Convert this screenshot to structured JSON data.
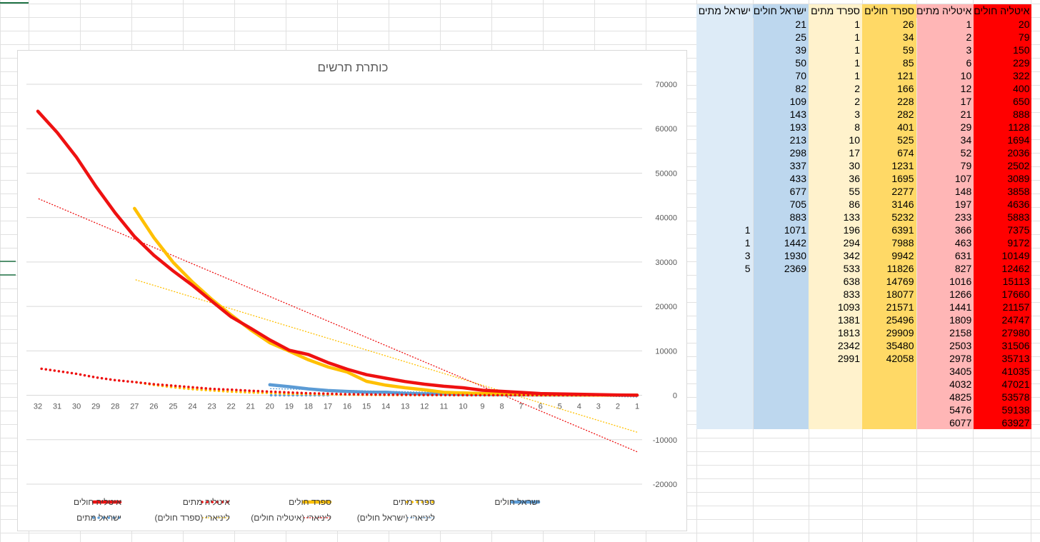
{
  "colors": {
    "italy_cases": "#FF0000",
    "italy_deaths": "#FFB6B6",
    "spain_cases": "#FFD966",
    "spain_deaths": "#FFF2CC",
    "israel_cases": "#BDD7EE",
    "israel_deaths": "#DDEBF7",
    "line_italy": "#EE1111",
    "line_spain": "#FFC000",
    "line_israel": "#5B9BD5"
  },
  "table": {
    "headers": [
      "ישראל מתים",
      "ישראל חולים",
      "ספרד מתים",
      "ספרד חולים",
      "איטליה מתים",
      "איטליה חולים"
    ],
    "columns": {
      "israel_deaths": [
        null,
        null,
        null,
        null,
        null,
        null,
        null,
        null,
        null,
        null,
        null,
        null,
        null,
        null,
        null,
        null,
        1,
        1,
        3,
        5
      ],
      "israel_cases": [
        21,
        25,
        39,
        50,
        70,
        82,
        109,
        143,
        193,
        213,
        298,
        337,
        433,
        677,
        705,
        883,
        1071,
        1442,
        1930,
        2369
      ],
      "spain_deaths": [
        1,
        1,
        1,
        1,
        1,
        2,
        2,
        3,
        8,
        10,
        17,
        30,
        36,
        55,
        86,
        133,
        196,
        294,
        342,
        533,
        638,
        833,
        1093,
        1381,
        1813,
        2342,
        2991
      ],
      "spain_cases": [
        26,
        34,
        59,
        85,
        121,
        166,
        228,
        282,
        401,
        525,
        674,
        1231,
        1695,
        2277,
        3146,
        5232,
        6391,
        7988,
        9942,
        11826,
        14769,
        18077,
        21571,
        25496,
        29909,
        35480,
        42058
      ],
      "italy_deaths": [
        1,
        2,
        3,
        6,
        10,
        12,
        17,
        21,
        29,
        34,
        52,
        79,
        107,
        148,
        197,
        233,
        366,
        463,
        631,
        827,
        1016,
        1266,
        1441,
        1809,
        2158,
        2503,
        2978,
        3405,
        4032,
        4825,
        5476,
        6077
      ],
      "italy_cases": [
        20,
        79,
        150,
        229,
        322,
        400,
        650,
        888,
        1128,
        1694,
        2036,
        2502,
        3089,
        3858,
        4636,
        5883,
        7375,
        9172,
        10149,
        12462,
        15113,
        17660,
        21157,
        24747,
        27980,
        31506,
        35713,
        41035,
        47021,
        53578,
        59138,
        63927
      ]
    }
  },
  "chart_data": {
    "type": "line",
    "title": "כותרת תרשים",
    "x_reversed": true,
    "x": [
      1,
      2,
      3,
      4,
      5,
      6,
      7,
      8,
      9,
      10,
      11,
      12,
      13,
      14,
      15,
      16,
      17,
      18,
      19,
      20,
      21,
      22,
      23,
      24,
      25,
      26,
      27,
      28,
      29,
      30,
      31,
      32
    ],
    "ylim": [
      -20000,
      70000
    ],
    "yticks": [
      -20000,
      -10000,
      0,
      10000,
      20000,
      30000,
      40000,
      50000,
      60000,
      70000
    ],
    "gridlines": true,
    "legend_position": "bottom",
    "series": [
      {
        "name": "איטליה חולים",
        "source": "italy_cases",
        "style": "solid",
        "color": "#EE1111"
      },
      {
        "name": "איטליה מתים",
        "source": "italy_deaths",
        "style": "dots",
        "color": "#EE1111"
      },
      {
        "name": "ספרד חולים",
        "source": "spain_cases",
        "style": "solid",
        "color": "#FFC000"
      },
      {
        "name": "ספרד מתים",
        "source": "spain_deaths",
        "style": "dots",
        "color": "#FFC000"
      },
      {
        "name": "ישראל חולים",
        "source": "israel_cases",
        "style": "solid",
        "color": "#5B9BD5"
      },
      {
        "name": "ישראל מתים",
        "source": "israel_deaths",
        "style": "dots",
        "color": "#5B9BD5"
      }
    ],
    "trendlines": [
      {
        "name": "ליניארי (ספרד חולים)",
        "source": "spain_cases",
        "color": "#FFC000"
      },
      {
        "name": "ליניארי (איטליה חולים)",
        "source": "italy_cases",
        "color": "#EE1111"
      },
      {
        "name": "ליניארי (ישראל חולים)",
        "source": "israel_cases",
        "color": "#5B9BD5"
      }
    ]
  }
}
